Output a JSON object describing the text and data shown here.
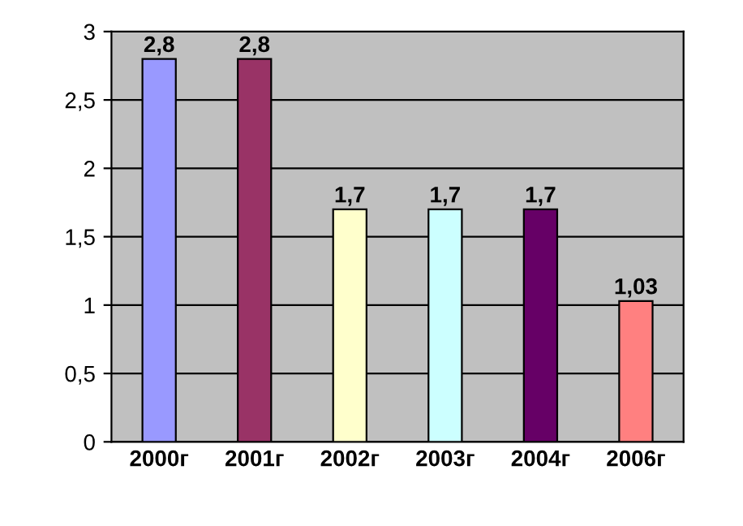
{
  "chart_data": {
    "type": "bar",
    "categories": [
      "2000г",
      "2001г",
      "2002г",
      "2003г",
      "2004г",
      "2006г"
    ],
    "values": [
      2.8,
      2.8,
      1.7,
      1.7,
      1.7,
      1.03
    ],
    "colors": [
      "#9999ff",
      "#993366",
      "#ffffcc",
      "#ccffff",
      "#660066",
      "#ff8080"
    ],
    "value_labels": [
      "2,8",
      "2,8",
      "1,7",
      "1,7",
      "1,7",
      "1,03"
    ],
    "ylim": [
      0,
      3
    ],
    "yticks": [
      0,
      {
        "value": 0.5,
        "label": "0,5"
      },
      1,
      {
        "value": 1.5,
        "label": "1,5"
      },
      2,
      {
        "value": 2.5,
        "label": "2,5"
      },
      3
    ],
    "grid": "y"
  }
}
